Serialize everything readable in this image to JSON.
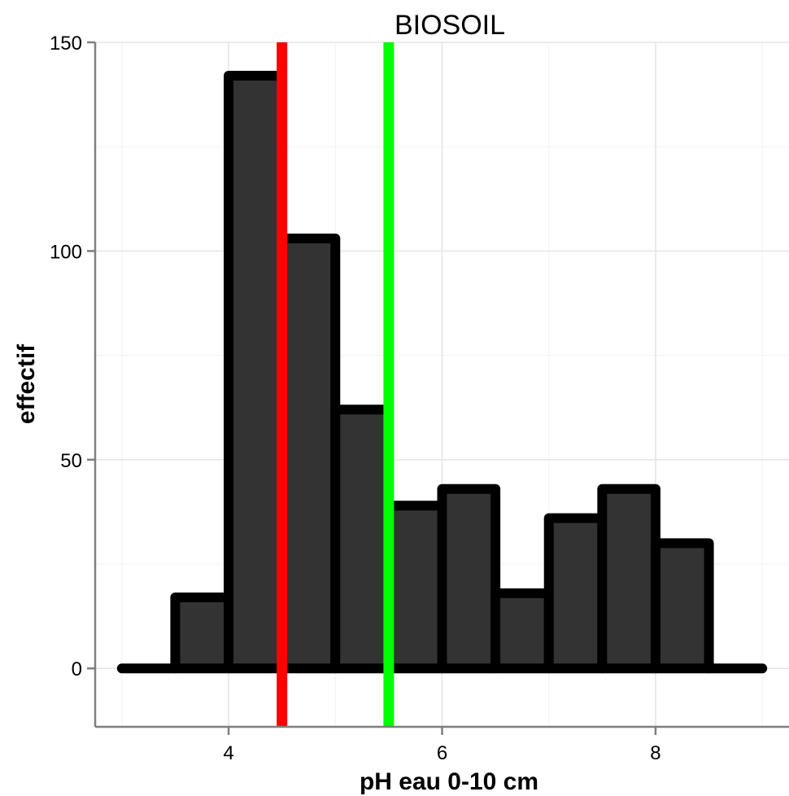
{
  "chart_data": {
    "type": "bar",
    "title": "BIOSOIL",
    "xlabel": "pH eau 0-10 cm",
    "ylabel": "effectif",
    "xlim": [
      2.75,
      9.25
    ],
    "ylim": [
      -14,
      150
    ],
    "x_ticks": [
      4,
      6,
      8
    ],
    "x_tick_labels": [
      "4",
      "6",
      "8"
    ],
    "y_ticks": [
      0,
      50,
      100,
      150
    ],
    "y_tick_labels": [
      "0",
      "50",
      "100",
      "150"
    ],
    "grid": true,
    "bin_width": 0.5,
    "bins": [
      {
        "x0": 3.0,
        "x1": 3.5,
        "count": 0
      },
      {
        "x0": 3.5,
        "x1": 4.0,
        "count": 17
      },
      {
        "x0": 4.0,
        "x1": 4.5,
        "count": 142
      },
      {
        "x0": 4.5,
        "x1": 5.0,
        "count": 103
      },
      {
        "x0": 5.0,
        "x1": 5.5,
        "count": 62
      },
      {
        "x0": 5.5,
        "x1": 6.0,
        "count": 39
      },
      {
        "x0": 6.0,
        "x1": 6.5,
        "count": 43
      },
      {
        "x0": 6.5,
        "x1": 7.0,
        "count": 18
      },
      {
        "x0": 7.0,
        "x1": 7.5,
        "count": 36
      },
      {
        "x0": 7.5,
        "x1": 8.0,
        "count": 43
      },
      {
        "x0": 8.0,
        "x1": 8.5,
        "count": 30
      },
      {
        "x0": 8.5,
        "x1": 9.0,
        "count": 0
      }
    ],
    "vlines": [
      {
        "x": 4.5,
        "color": "#ff0000"
      },
      {
        "x": 5.5,
        "color": "#00ff00"
      }
    ],
    "colors": {
      "bar_fill": "#333333",
      "bar_outline": "#000000",
      "grid_major": "#e5e5e5",
      "grid_minor": "#f2f2f2",
      "axis": "#7f7f7f"
    }
  }
}
